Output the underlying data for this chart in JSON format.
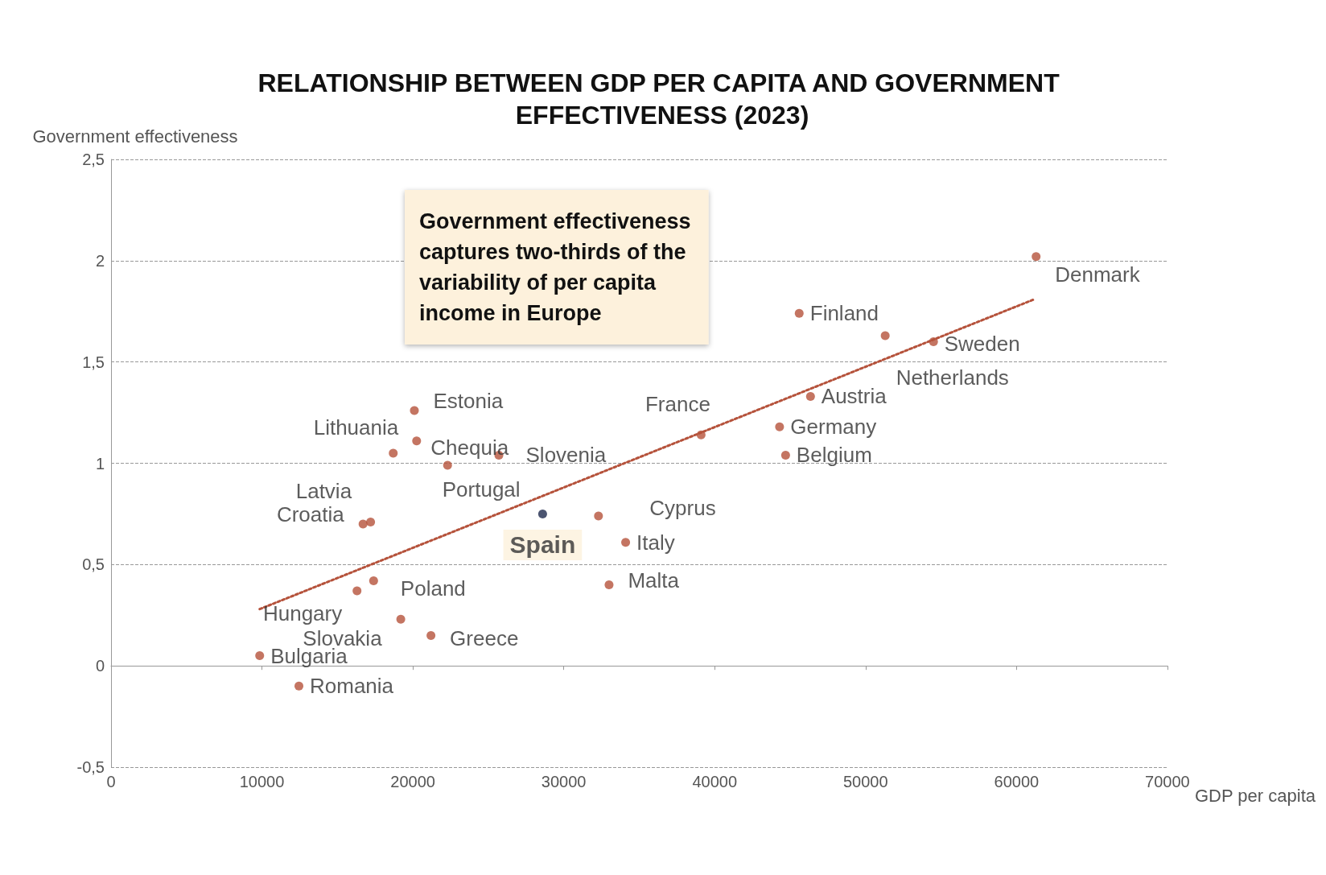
{
  "chart_data": {
    "type": "scatter",
    "title": "RELATIONSHIP BETWEEN GDP PER CAPITA AND GOVERNMENT EFFECTIVENESS (2023)",
    "xlabel": "GDP per capita",
    "ylabel": "Government effectiveness",
    "xlim": [
      0,
      70000
    ],
    "xticks": [
      0,
      10000,
      20000,
      30000,
      40000,
      50000,
      60000,
      70000
    ],
    "ylim": [
      -0.5,
      2.5
    ],
    "yticks": [
      {
        "value": -0.5,
        "label": "-0,5"
      },
      0,
      {
        "value": 0.5,
        "label": "0,5"
      },
      1,
      {
        "value": 1.5,
        "label": "1,5"
      },
      2,
      {
        "value": 2.5,
        "label": "2,5"
      }
    ],
    "grid": "y",
    "marker": "circle",
    "series": [
      {
        "type": "scatter",
        "color": "#b5523b",
        "x": [
          61300,
          45600,
          51300,
          54500,
          46350,
          44300,
          44700,
          39100,
          20100,
          20250,
          18700,
          25700,
          22300,
          17200,
          16700,
          28600,
          32300,
          34100,
          33000,
          17400,
          16300,
          19200,
          21200,
          9850,
          12450
        ],
        "values": [
          2.02,
          1.74,
          1.63,
          1.6,
          1.33,
          1.18,
          1.04,
          1.14,
          1.26,
          1.11,
          1.05,
          1.04,
          0.99,
          0.71,
          0.7,
          0.75,
          0.74,
          0.61,
          0.4,
          0.42,
          0.37,
          0.23,
          0.15,
          0.05,
          -0.1
        ],
        "colors": [
          "#b5523b",
          "#b5523b",
          "#b5523b",
          "#b5523b",
          "#b5523b",
          "#b5523b",
          "#b5523b",
          "#b5523b",
          "#b5523b",
          "#b5523b",
          "#b5523b",
          "#b5523b",
          "#b5523b",
          "#b5523b",
          "#b5523b",
          "#1f2a4d",
          "#b5523b",
          "#b5523b",
          "#b5523b",
          "#b5523b",
          "#b5523b",
          "#b5523b",
          "#b5523b",
          "#b5523b",
          "#b5523b"
        ]
      },
      {
        "type": "line",
        "color": "#b5523b",
        "line_style": "dotted",
        "marker": "none",
        "x": [
          9850,
          61200
        ],
        "values": [
          0.28,
          1.81
        ]
      }
    ],
    "annotations": [
      "Government effectiveness captures two-thirds of the variability of per capita income in Europe",
      {
        "text": "Denmark",
        "x": 61300,
        "y": 2.02
      },
      {
        "text": "Finland",
        "x": 45600,
        "y": 1.74
      },
      {
        "text": "Netherlands",
        "x": 51300,
        "y": 1.63
      },
      {
        "text": "Sweden",
        "x": 54500,
        "y": 1.6
      },
      {
        "text": "Austria",
        "x": 46350,
        "y": 1.33
      },
      {
        "text": "Germany",
        "x": 44300,
        "y": 1.18
      },
      {
        "text": "Belgium",
        "x": 44700,
        "y": 1.04
      },
      {
        "text": "France",
        "x": 39100,
        "y": 1.14
      },
      {
        "text": "Estonia",
        "x": 20100,
        "y": 1.26
      },
      {
        "text": "Chequia",
        "x": 20250,
        "y": 1.11
      },
      {
        "text": "Lithuania",
        "x": 18700,
        "y": 1.05
      },
      {
        "text": "Slovenia",
        "x": 25700,
        "y": 1.04
      },
      {
        "text": "Portugal",
        "x": 22300,
        "y": 0.99
      },
      {
        "text": "Latvia",
        "x": 17200,
        "y": 0.71
      },
      {
        "text": "Croatia",
        "x": 16700,
        "y": 0.7
      },
      {
        "text": "Spain",
        "x": 28600,
        "y": 0.75
      },
      {
        "text": "Cyprus",
        "x": 32300,
        "y": 0.74
      },
      {
        "text": "Italy",
        "x": 34100,
        "y": 0.61
      },
      {
        "text": "Malta",
        "x": 33000,
        "y": 0.4
      },
      {
        "text": "Poland",
        "x": 17400,
        "y": 0.42
      },
      {
        "text": "Hungary",
        "x": 16300,
        "y": 0.37
      },
      {
        "text": "Slovakia",
        "x": 19200,
        "y": 0.23
      },
      {
        "text": "Greece",
        "x": 21200,
        "y": 0.15
      },
      {
        "text": "Bulgaria",
        "x": 9850,
        "y": 0.05
      },
      {
        "text": "Romania",
        "x": 12450,
        "y": -0.1
      }
    ]
  }
}
